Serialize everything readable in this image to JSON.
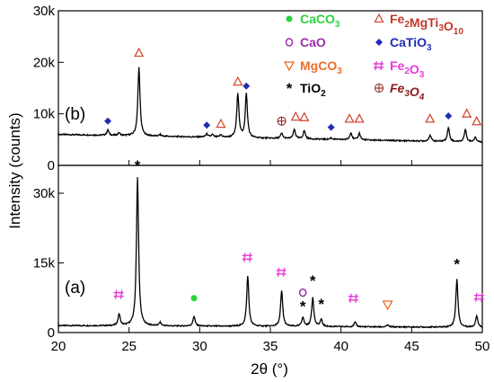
{
  "chart_data": {
    "type": "line",
    "xlabel": "2θ (°)",
    "ylabel": "Intensity (counts)",
    "xlim": [
      20,
      50
    ],
    "x_ticks": [
      20,
      25,
      30,
      35,
      40,
      45,
      50
    ],
    "x_tick_labels": [
      "20",
      "25",
      "30",
      "35",
      "40",
      "45",
      "50"
    ],
    "grid": false,
    "panels": [
      {
        "label": "(b)",
        "position": "top",
        "ylim": [
          0,
          30000
        ],
        "y_ticks": [
          0,
          10000,
          20000,
          30000
        ],
        "y_tick_labels": [
          "0",
          "10k",
          "20k",
          "30k"
        ],
        "baseline": 6000,
        "peaks": [
          {
            "x": 23.5,
            "y": 7000
          },
          {
            "x": 24.3,
            "y": 6500
          },
          {
            "x": 25.7,
            "y": 19300
          },
          {
            "x": 27.2,
            "y": 6300
          },
          {
            "x": 30.5,
            "y": 6600
          },
          {
            "x": 30.9,
            "y": 6500
          },
          {
            "x": 31.5,
            "y": 6500
          },
          {
            "x": 32.7,
            "y": 14600
          },
          {
            "x": 33.3,
            "y": 14500
          },
          {
            "x": 35.8,
            "y": 7000
          },
          {
            "x": 36.7,
            "y": 7800
          },
          {
            "x": 37.4,
            "y": 7600
          },
          {
            "x": 39.3,
            "y": 6300
          },
          {
            "x": 40.7,
            "y": 7400
          },
          {
            "x": 41.3,
            "y": 7300
          },
          {
            "x": 46.3,
            "y": 7200
          },
          {
            "x": 47.6,
            "y": 8700
          },
          {
            "x": 48.8,
            "y": 8400
          },
          {
            "x": 49.5,
            "y": 7000
          }
        ],
        "markers": [
          {
            "x": 23.5,
            "y": 8600,
            "phase": "CaTiO3"
          },
          {
            "x": 25.7,
            "y": 21800,
            "phase": "Fe2MgTi3O10"
          },
          {
            "x": 30.5,
            "y": 7800,
            "phase": "CaTiO3"
          },
          {
            "x": 31.5,
            "y": 8000,
            "phase": "Fe2MgTi3O10"
          },
          {
            "x": 32.7,
            "y": 16200,
            "phase": "Fe2MgTi3O10"
          },
          {
            "x": 33.3,
            "y": 15400,
            "phase": "CaTiO3"
          },
          {
            "x": 35.8,
            "y": 8600,
            "phase": "Fe3O4"
          },
          {
            "x": 36.8,
            "y": 9400,
            "phase": "Fe2MgTi3O10"
          },
          {
            "x": 37.4,
            "y": 9300,
            "phase": "Fe2MgTi3O10"
          },
          {
            "x": 39.3,
            "y": 7400,
            "phase": "CaTiO3"
          },
          {
            "x": 40.6,
            "y": 9000,
            "phase": "Fe2MgTi3O10"
          },
          {
            "x": 41.3,
            "y": 9000,
            "phase": "Fe2MgTi3O10"
          },
          {
            "x": 46.3,
            "y": 9000,
            "phase": "Fe2MgTi3O10"
          },
          {
            "x": 47.6,
            "y": 9600,
            "phase": "CaTiO3"
          },
          {
            "x": 48.9,
            "y": 10000,
            "phase": "Fe2MgTi3O10"
          },
          {
            "x": 49.6,
            "y": 8500,
            "phase": "Fe2MgTi3O10"
          }
        ]
      },
      {
        "label": "(a)",
        "position": "bottom",
        "ylim": [
          0,
          36000
        ],
        "y_ticks": [
          0,
          15000,
          30000
        ],
        "y_tick_labels": [
          "0",
          "15k",
          "30k"
        ],
        "baseline": 1500,
        "peaks": [
          {
            "x": 24.3,
            "y": 4000
          },
          {
            "x": 25.6,
            "y": 33500
          },
          {
            "x": 27.2,
            "y": 2200
          },
          {
            "x": 29.6,
            "y": 3600
          },
          {
            "x": 33.4,
            "y": 12300
          },
          {
            "x": 35.8,
            "y": 9200
          },
          {
            "x": 37.3,
            "y": 3500
          },
          {
            "x": 38.0,
            "y": 7800
          },
          {
            "x": 38.6,
            "y": 3000
          },
          {
            "x": 41.0,
            "y": 2500
          },
          {
            "x": 43.3,
            "y": 1900
          },
          {
            "x": 48.2,
            "y": 11800
          },
          {
            "x": 49.6,
            "y": 4000
          }
        ],
        "markers": [
          {
            "x": 24.3,
            "y": 8200,
            "phase": "Fe2O3"
          },
          {
            "x": 25.6,
            "y": 36000,
            "phase": "TiO2"
          },
          {
            "x": 29.6,
            "y": 7400,
            "phase": "CaCO3"
          },
          {
            "x": 33.4,
            "y": 16200,
            "phase": "Fe2O3"
          },
          {
            "x": 35.8,
            "y": 13000,
            "phase": "Fe2O3"
          },
          {
            "x": 37.3,
            "y": 8600,
            "phase": "CaO"
          },
          {
            "x": 37.3,
            "y": 5700,
            "phase": "TiO2"
          },
          {
            "x": 38.0,
            "y": 11200,
            "phase": "TiO2"
          },
          {
            "x": 38.6,
            "y": 6200,
            "phase": "TiO2"
          },
          {
            "x": 40.9,
            "y": 7400,
            "phase": "Fe2O3"
          },
          {
            "x": 43.3,
            "y": 6000,
            "phase": "MgCO3"
          },
          {
            "x": 48.2,
            "y": 14800,
            "phase": "TiO2"
          },
          {
            "x": 49.8,
            "y": 7600,
            "phase": "Fe2O3"
          }
        ]
      }
    ],
    "legend": {
      "placement": "top-right",
      "items": [
        {
          "phase": "CaCO3",
          "label": "CaCO",
          "sub": "3",
          "tail": "",
          "color": "#2bd33f",
          "symbol": "dot"
        },
        {
          "phase": "Fe2MgTi3O10",
          "label": "Fe",
          "sub": "2",
          "mid": "MgTi",
          "sub2": "3",
          "mid2": "O",
          "sub3": "10",
          "color": "#c0392b",
          "symbol": "triangle"
        },
        {
          "phase": "CaO",
          "label": "CaO",
          "sub": "",
          "color": "#9b30a8",
          "symbol": "circle"
        },
        {
          "phase": "CaTiO3",
          "label": "CaTiO",
          "sub": "3",
          "color": "#1f2db5",
          "symbol": "diamond"
        },
        {
          "phase": "MgCO3",
          "label": "MgCO",
          "sub": "3",
          "color": "#ee6c2c",
          "symbol": "down-triangle"
        },
        {
          "phase": "Fe2O3",
          "label": "Fe",
          "sub": "2",
          "mid": "O",
          "sub2": "3",
          "color": "#e53ad9",
          "symbol": "hash"
        },
        {
          "phase": "TiO2",
          "label": "TiO",
          "sub": "2",
          "color": "#000000",
          "symbol": "star"
        },
        {
          "phase": "Fe3O4",
          "label": "Fe",
          "sub": "3",
          "mid": "O",
          "sub2": "4",
          "color": "#8b1a1a",
          "symbol": "circle-plus",
          "italic": true
        }
      ]
    },
    "colors": {
      "CaCO3": "#2bd33f",
      "Fe2MgTi3O10": "#d24a34",
      "CaO": "#9b30a8",
      "CaTiO3": "#1f2db5",
      "MgCO3": "#ee6c2c",
      "Fe2O3": "#e53ad9",
      "TiO2": "#000000",
      "Fe3O4": "#8b1a1a"
    }
  }
}
